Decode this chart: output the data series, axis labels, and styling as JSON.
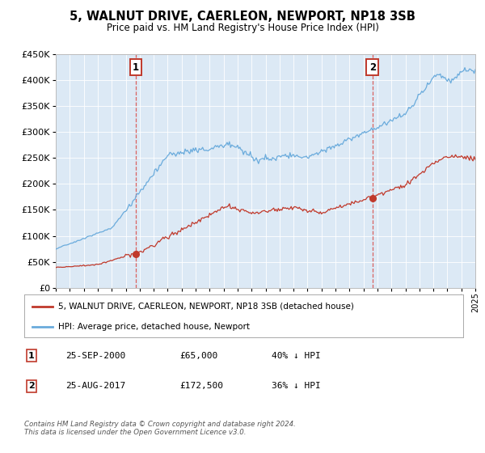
{
  "title": "5, WALNUT DRIVE, CAERLEON, NEWPORT, NP18 3SB",
  "subtitle": "Price paid vs. HM Land Registry's House Price Index (HPI)",
  "bg_color": "#dce9f5",
  "hpi_color": "#6aabdc",
  "price_color": "#c0392b",
  "vline_color": "#d9534f",
  "sale1_date": 2000.73,
  "sale1_price": 65000,
  "sale1_label": "1",
  "sale2_date": 2017.65,
  "sale2_price": 172500,
  "sale2_label": "2",
  "xmin": 1995,
  "xmax": 2025,
  "ymin": 0,
  "ymax": 450000,
  "legend_line1": "5, WALNUT DRIVE, CAERLEON, NEWPORT, NP18 3SB (detached house)",
  "legend_line2": "HPI: Average price, detached house, Newport",
  "table_row1_num": "1",
  "table_row1_date": "25-SEP-2000",
  "table_row1_price": "£65,000",
  "table_row1_hpi": "40% ↓ HPI",
  "table_row2_num": "2",
  "table_row2_date": "25-AUG-2017",
  "table_row2_price": "£172,500",
  "table_row2_hpi": "36% ↓ HPI",
  "footer": "Contains HM Land Registry data © Crown copyright and database right 2024.\nThis data is licensed under the Open Government Licence v3.0.",
  "yticks": [
    0,
    50000,
    100000,
    150000,
    200000,
    250000,
    300000,
    350000,
    400000,
    450000
  ]
}
